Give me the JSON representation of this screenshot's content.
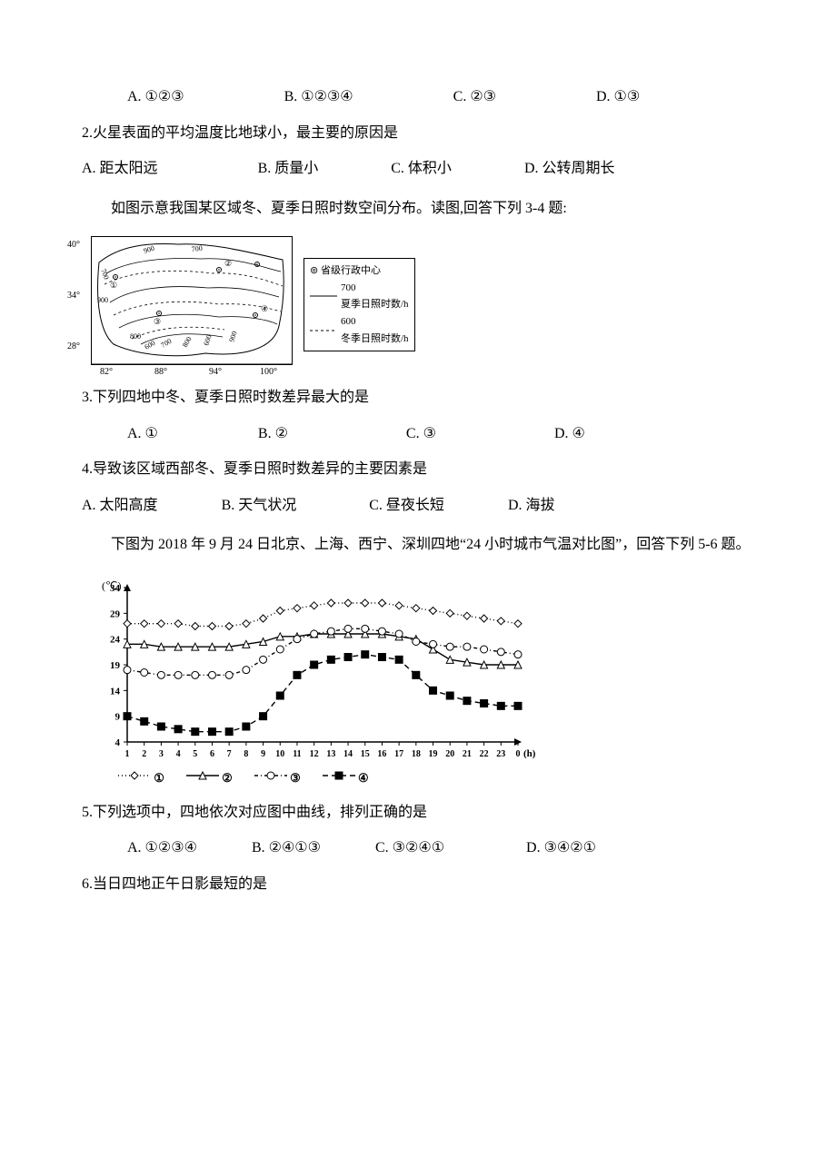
{
  "q1": {
    "options": {
      "A": "A.  ①②③",
      "B": "B.  ①②③④",
      "C": "C.  ②③",
      "D": "D.  ①③"
    }
  },
  "q2": {
    "text": "2.火星表面的平均温度比地球小，最主要的原因是",
    "options": {
      "A": "A.  距太阳远",
      "B": "B.  质量小",
      "C": "C.  体积小",
      "D": "D.  公转周期长"
    }
  },
  "passage1": "如图示意我国某区域冬、夏季日照时数空间分布。读图,回答下列 3-4 题:",
  "figure1": {
    "lat_ticks": [
      "40°",
      "34°",
      "28°"
    ],
    "lon_ticks": [
      "82°",
      "88°",
      "94°",
      "100°"
    ],
    "labels_in_map": [
      "900",
      "700",
      "900",
      "800",
      "900",
      "600",
      "700",
      "800",
      "600",
      "900",
      "②",
      "①",
      "③",
      "④",
      "700"
    ],
    "legend": {
      "l1": "⊚ 省级行政中心",
      "l2a": "700",
      "l2b": "夏季日照时数/h",
      "l3a": "600",
      "l3b": "冬季日照时数/h",
      "solid_line_color": "#000000",
      "dash_pattern": "3,3"
    }
  },
  "q3": {
    "text": "3.下列四地中冬、夏季日照时数差异最大的是",
    "options": {
      "A": "A.  ①",
      "B": "B.  ②",
      "C": "C.  ③",
      "D": "D.  ④"
    }
  },
  "q4": {
    "text": "4.导致该区域西部冬、夏季日照时数差异的主要因素是",
    "options": {
      "A": "A.  太阳高度",
      "B": "B.  天气状况",
      "C": "C.  昼夜长短",
      "D": "D.  海拔"
    }
  },
  "passage2": "下图为 2018 年 9 月 24 日北京、上海、西宁、深圳四地“24 小时城市气温对比图”，回答下列 5-6 题。",
  "chart2": {
    "type": "line",
    "y_unit": "(℃)",
    "y_ticks": [
      4,
      9,
      14,
      19,
      24,
      29,
      34
    ],
    "x_ticks": [
      1,
      2,
      3,
      4,
      5,
      6,
      7,
      8,
      9,
      10,
      11,
      12,
      13,
      14,
      15,
      16,
      17,
      18,
      19,
      20,
      21,
      22,
      23,
      0
    ],
    "x_unit": "(h)",
    "xlim": [
      1,
      24
    ],
    "ylim": [
      4,
      34
    ],
    "background_color": "#ffffff",
    "axis_color": "#000000",
    "series": [
      {
        "name": "①",
        "marker": "diamond-open",
        "fill": "#ffffff",
        "stroke": "#000000",
        "dash": "1,3",
        "values": [
          27,
          27,
          27,
          27,
          26.5,
          26.5,
          26.5,
          27,
          28,
          29.5,
          30,
          30.5,
          31,
          31,
          31,
          31,
          30.5,
          30,
          29.5,
          29,
          28.5,
          28,
          27.5,
          27
        ]
      },
      {
        "name": "②",
        "marker": "triangle-open",
        "fill": "#ffffff",
        "stroke": "#000000",
        "dash": "",
        "values": [
          23,
          23,
          22.5,
          22.5,
          22.5,
          22.5,
          22.5,
          23,
          23.5,
          24.5,
          24.5,
          25,
          25,
          25,
          25,
          25,
          24.5,
          24,
          22,
          20,
          19.5,
          19,
          19,
          19
        ]
      },
      {
        "name": "③",
        "marker": "circle-open",
        "fill": "#ffffff",
        "stroke": "#000000",
        "dash": "4,3,1,3",
        "values": [
          18,
          17.5,
          17,
          17,
          17,
          17,
          17,
          18,
          20,
          22,
          24,
          25,
          25.5,
          26,
          26,
          25.5,
          25,
          23.5,
          23,
          22.5,
          22.5,
          22,
          21.5,
          21
        ]
      },
      {
        "name": "④",
        "marker": "square-solid",
        "fill": "#000000",
        "stroke": "#000000",
        "dash": "6,4",
        "values": [
          9,
          8,
          7,
          6.5,
          6,
          6,
          6,
          7,
          9,
          13,
          17,
          19,
          20,
          20.5,
          21,
          20.5,
          20,
          17,
          14,
          13,
          12,
          11.5,
          11,
          11
        ]
      }
    ],
    "legend_labels": [
      "①",
      "②",
      "③",
      "④"
    ]
  },
  "q5": {
    "text": "5.下列选项中，四地依次对应图中曲线，排列正确的是",
    "options": {
      "A": "A.  ①②③④",
      "B": "B.  ②④①③",
      "C": "C.  ③②④①",
      "D": "D.  ③④②①"
    }
  },
  "q6": {
    "text": "6.当日四地正午日影最短的是"
  }
}
